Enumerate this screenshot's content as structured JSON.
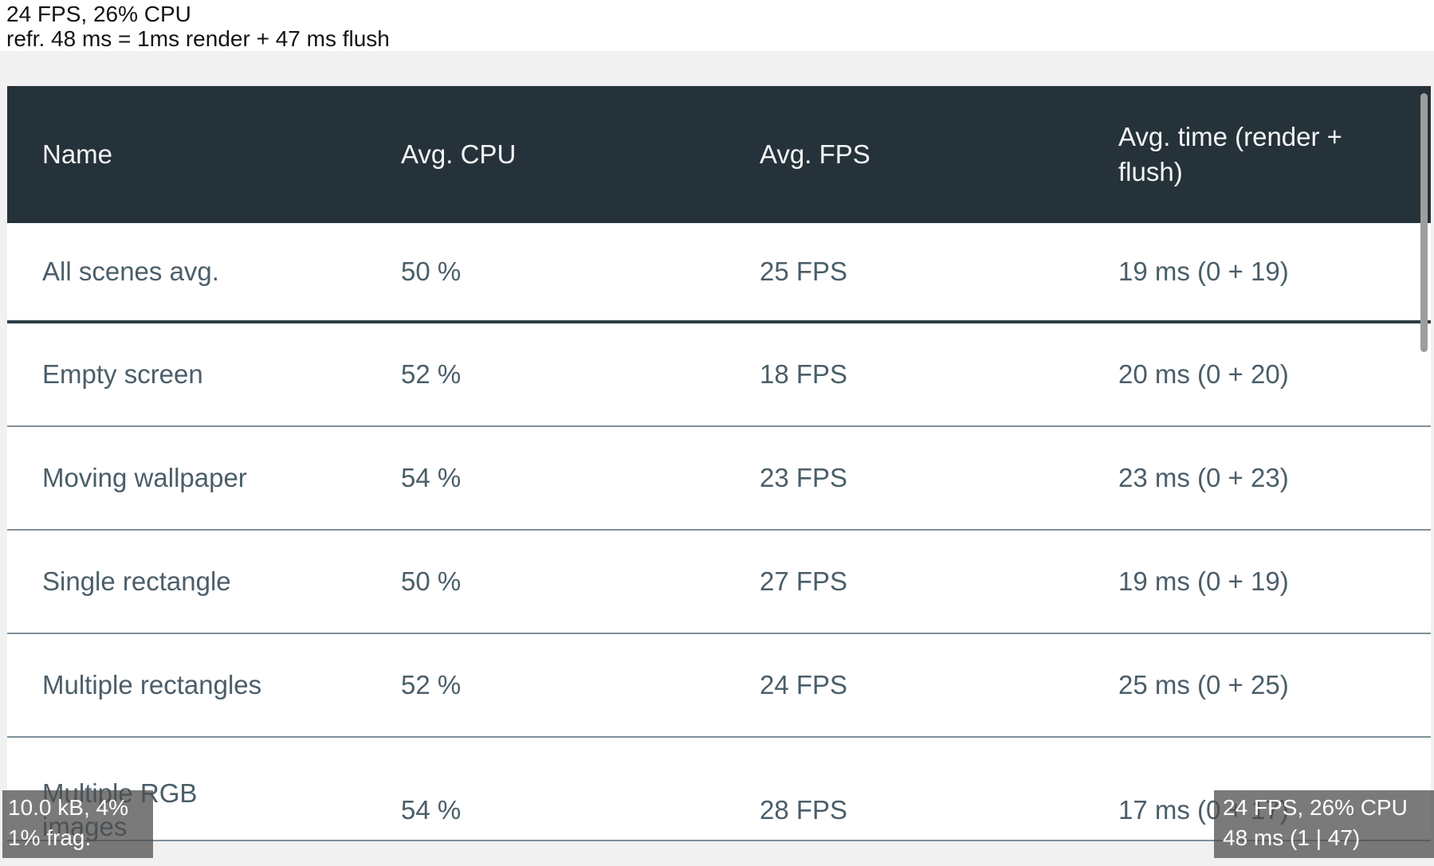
{
  "refresh_label": {
    "line1": "24 FPS, 26% CPU",
    "line2": "refr. 48 ms = 1ms render + 47 ms flush"
  },
  "table": {
    "columns": [
      "Name",
      "Avg. CPU",
      "Avg. FPS",
      "Avg. time (render + flush)"
    ],
    "rows": [
      {
        "name": "All scenes avg.",
        "cpu": "50 %",
        "fps": "25 FPS",
        "time": "19 ms (0 + 19)"
      },
      {
        "name": "Empty screen",
        "cpu": "52 %",
        "fps": "18 FPS",
        "time": "20 ms (0 + 20)"
      },
      {
        "name": "Moving wallpaper",
        "cpu": "54 %",
        "fps": "23 FPS",
        "time": "23 ms (0 + 23)"
      },
      {
        "name": "Single rectangle",
        "cpu": "50 %",
        "fps": "27 FPS",
        "time": "19 ms (0 + 19)"
      },
      {
        "name": "Multiple rectangles",
        "cpu": "52 %",
        "fps": "24 FPS",
        "time": "25 ms (0 + 25)"
      },
      {
        "name": "Multiple RGB images",
        "cpu": "54 %",
        "fps": "28 FPS",
        "time": "17 ms (0 + 17)"
      }
    ]
  },
  "memory_monitor": {
    "line1": "10.0 kB, 4%",
    "line2": "1% frag."
  },
  "performance_monitor": {
    "line1": "24 FPS, 26% CPU",
    "line2": "48 ms (1 | 47)"
  },
  "colors": {
    "header_bg": "#26323a",
    "header_text": "#f3f5f6",
    "row_bg": "#ffffff",
    "row_text": "#4b5e69",
    "thick_separator": "#2c3e46",
    "thin_separator": "#7e909a",
    "screen_bg": "#f2f1f1",
    "scrollbar": "#9d9d9d",
    "badge_bg": "#4d4d4d",
    "badge_text": "#ffffff"
  }
}
